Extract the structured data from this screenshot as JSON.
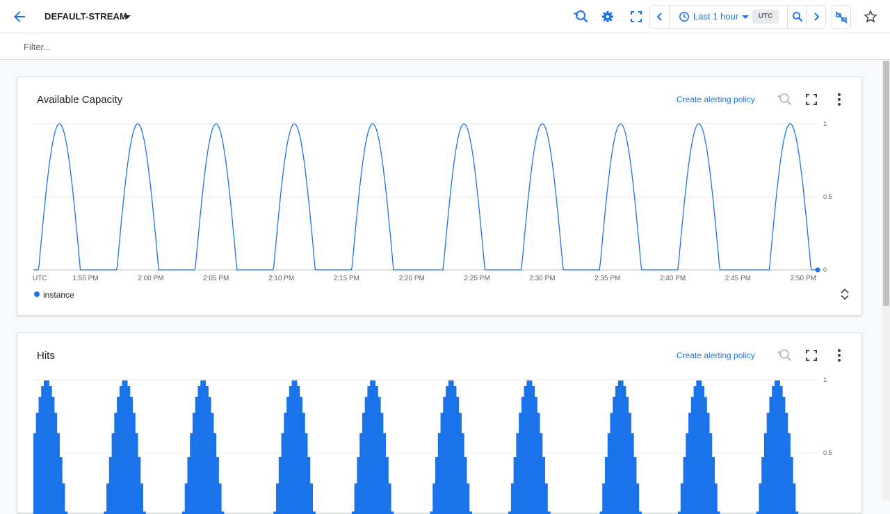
{
  "header": {
    "title": "DEFAULT-STREAM",
    "time_range": "Last 1 hour",
    "timezone": "UTC",
    "icons": [
      "back-arrow-icon",
      "caret-down-icon",
      "reset-zoom-icon",
      "settings-gear-icon",
      "fullscreen-icon",
      "chevron-left-icon",
      "clock-icon",
      "caret-down-icon",
      "zoom-in-icon",
      "chevron-right-icon",
      "sync-off-icon",
      "star-icon"
    ]
  },
  "filter": {
    "placeholder": "Filter..."
  },
  "charts": [
    {
      "title": "Available Capacity",
      "action": "Create alerting policy",
      "timezone_label": "UTC",
      "legend": "instance"
    },
    {
      "title": "Hits",
      "action": "Create alerting policy"
    }
  ],
  "colors": {
    "accent": "#1a73e8",
    "grid": "#e8eaed",
    "text_secondary": "#5f6368"
  },
  "chart_data": [
    {
      "type": "line",
      "title": "Available Capacity",
      "x_ticks": [
        "1:55 PM",
        "2:00 PM",
        "2:05 PM",
        "2:10 PM",
        "2:15 PM",
        "2:20 PM",
        "2:25 PM",
        "2:30 PM",
        "2:35 PM",
        "2:40 PM",
        "2:45 PM",
        "2:50 PM"
      ],
      "x_range": [
        "1:51 PM",
        "2:51 PM"
      ],
      "y_ticks": [
        "1",
        "0.5",
        "0"
      ],
      "ylim": [
        0,
        1
      ],
      "grid": true,
      "series": [
        {
          "name": "instance",
          "peaks_at": [
            "1:53 PM",
            "1:59 PM",
            "2:05 PM",
            "2:11 PM",
            "2:17 PM",
            "2:24 PM",
            "2:30 PM",
            "2:36 PM",
            "2:42 PM",
            "2:49 PM"
          ],
          "peak_value": 1,
          "trough_value": 0,
          "pulse_width_minutes": 3.2
        }
      ]
    },
    {
      "type": "bar",
      "title": "Hits",
      "y_ticks": [
        "1",
        "0.5"
      ],
      "ylim": [
        0,
        1
      ],
      "grid": true,
      "series": [
        {
          "peaks_at": [
            "1:52 PM",
            "1:58 PM",
            "2:04 PM",
            "2:11 PM",
            "2:17 PM",
            "2:23 PM",
            "2:29 PM",
            "2:36 PM",
            "2:42 PM",
            "2:48 PM"
          ],
          "peak_value": 1,
          "pulse_width_minutes": 3.2
        }
      ]
    }
  ]
}
